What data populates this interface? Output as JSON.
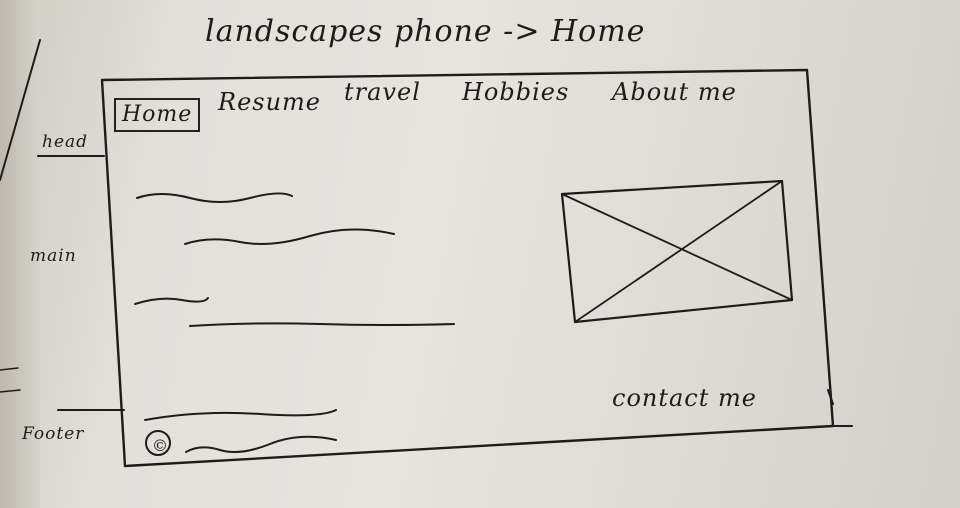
{
  "title": "landscapes phone -> Home",
  "header": {
    "nav": [
      {
        "label": "Home",
        "selected": true
      },
      {
        "label": "Resume",
        "selected": false
      },
      {
        "label": "travel",
        "selected": false
      },
      {
        "label": "Hobbies",
        "selected": false
      },
      {
        "label": "About me",
        "selected": false
      }
    ]
  },
  "annotations": {
    "head": "head",
    "main": "main",
    "footer": "Footer"
  },
  "main": {
    "image_placeholder_icon": "image-placeholder-icon"
  },
  "footer": {
    "copyright_symbol": "©",
    "contact": "contact me"
  },
  "colors": {
    "ink": "#1e1c1a",
    "paper": "#e2e0db"
  }
}
